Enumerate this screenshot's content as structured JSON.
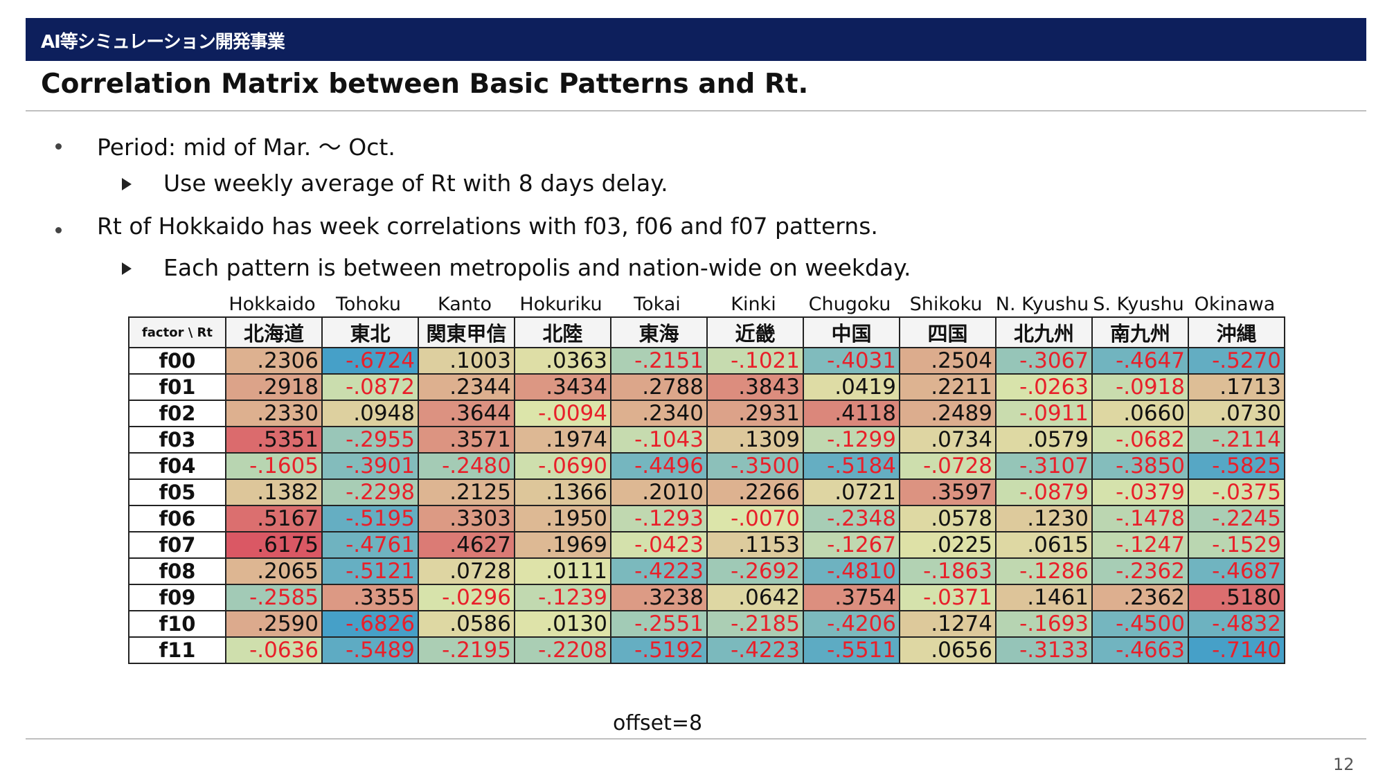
{
  "header": {
    "banner": "AI等シミュレーション開発事業"
  },
  "slide": {
    "title": "Correlation Matrix between Basic Patterns and Rt."
  },
  "bullets": [
    {
      "text": "Period: mid of Mar. ～ Oct.",
      "sub": "Use weekly average of Rt with 8 days delay."
    },
    {
      "text": "Rt of Hokkaido has week correlations with f03, f06 and f07 patterns.",
      "sub": "Each pattern is between metropolis and nation-wide on weekday."
    }
  ],
  "regions_en": [
    "Hokkaido",
    "Tohoku",
    "Kanto",
    "Hokuriku",
    "Tokai",
    "Kinki",
    "Chugoku",
    "Shikoku",
    "N. Kyushu",
    "S. Kyushu",
    "Okinawa"
  ],
  "table": {
    "corner": "factor \\ Rt",
    "columns_jp": [
      "北海道",
      "東北",
      "関東甲信",
      "北陸",
      "東海",
      "近畿",
      "中国",
      "四国",
      "北九州",
      "南九州",
      "沖縄"
    ],
    "rows": [
      {
        "factor": "f00",
        "values": [
          ".2306",
          "-.6724",
          ".1003",
          ".0363",
          "-.2151",
          "-.1021",
          "-.4031",
          ".2504",
          "-.3067",
          "-.4647",
          "-.5270"
        ]
      },
      {
        "factor": "f01",
        "values": [
          ".2918",
          "-.0872",
          ".2344",
          ".3434",
          ".2788",
          ".3843",
          ".0419",
          ".2211",
          "-.0263",
          "-.0918",
          ".1713"
        ]
      },
      {
        "factor": "f02",
        "values": [
          ".2330",
          ".0948",
          ".3644",
          "-.0094",
          ".2340",
          ".2931",
          ".4118",
          ".2489",
          "-.0911",
          ".0660",
          ".0730"
        ]
      },
      {
        "factor": "f03",
        "values": [
          ".5351",
          "-.2955",
          ".3571",
          ".1974",
          "-.1043",
          ".1309",
          "-.1299",
          ".0734",
          ".0579",
          "-.0682",
          "-.2114"
        ]
      },
      {
        "factor": "f04",
        "values": [
          "-.1605",
          "-.3901",
          "-.2480",
          "-.0690",
          "-.4496",
          "-.3500",
          "-.5184",
          "-.0728",
          "-.3107",
          "-.3850",
          "-.5825"
        ]
      },
      {
        "factor": "f05",
        "values": [
          ".1382",
          "-.2298",
          ".2125",
          ".1366",
          ".2010",
          ".2266",
          ".0721",
          ".3597",
          "-.0879",
          "-.0379",
          "-.0375"
        ]
      },
      {
        "factor": "f06",
        "values": [
          ".5167",
          "-.5195",
          ".3303",
          ".1950",
          "-.1293",
          "-.0070",
          "-.2348",
          ".0578",
          ".1230",
          "-.1478",
          "-.2245"
        ]
      },
      {
        "factor": "f07",
        "values": [
          ".6175",
          "-.4761",
          ".4627",
          ".1969",
          "-.0423",
          ".1153",
          "-.1267",
          ".0225",
          ".0615",
          "-.1247",
          "-.1529"
        ]
      },
      {
        "factor": "f08",
        "values": [
          ".2065",
          "-.5121",
          ".0728",
          ".0111",
          "-.4223",
          "-.2692",
          "-.4810",
          "-.1863",
          "-.1286",
          "-.2362",
          "-.4687"
        ]
      },
      {
        "factor": "f09",
        "values": [
          "-.2585",
          ".3355",
          "-.0296",
          "-.1239",
          ".3238",
          ".0642",
          ".3754",
          "-.0371",
          ".1461",
          ".2362",
          ".5180"
        ]
      },
      {
        "factor": "f10",
        "values": [
          ".2590",
          "-.6826",
          ".0586",
          ".0130",
          "-.2551",
          "-.2185",
          "-.4206",
          ".1274",
          "-.1693",
          "-.4500",
          "-.4832"
        ]
      },
      {
        "factor": "f11",
        "values": [
          "-.0636",
          "-.5489",
          "-.2195",
          "-.2208",
          "-.5192",
          "-.4223",
          "-.5511",
          ".0656",
          "-.3133",
          "-.4663",
          "-.7140"
        ]
      }
    ],
    "footer": "offset=8"
  },
  "page_number": "12"
}
